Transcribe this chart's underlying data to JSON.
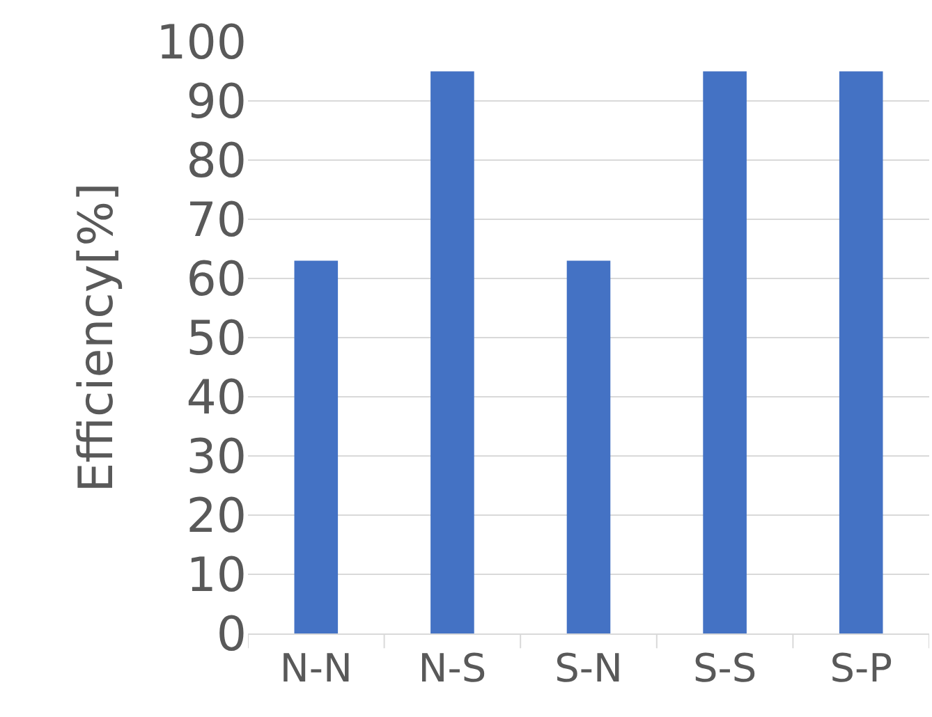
{
  "chart_data": {
    "type": "bar",
    "ylabel": "Efficiency[%]",
    "categories": [
      "N-N",
      "N-S",
      "S-N",
      "S-S",
      "S-P"
    ],
    "values": [
      63,
      95,
      63,
      95,
      95
    ],
    "color": "#4472c4",
    "ylim": [
      0,
      100
    ],
    "yticks": [
      0,
      10,
      20,
      30,
      40,
      50,
      60,
      70,
      80,
      90,
      100
    ],
    "grid": "y",
    "legend": false
  }
}
